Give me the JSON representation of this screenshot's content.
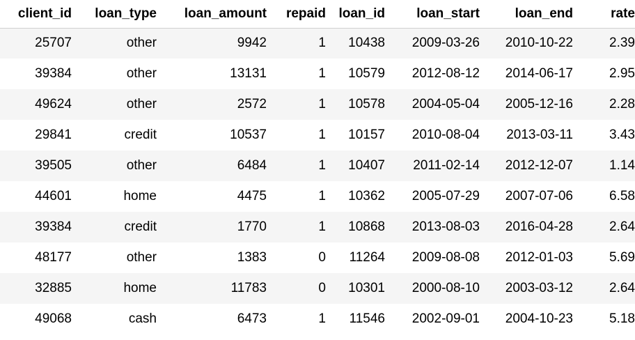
{
  "table": {
    "columns": [
      "client_id",
      "loan_type",
      "loan_amount",
      "repaid",
      "loan_id",
      "loan_start",
      "loan_end",
      "rate"
    ],
    "rows": [
      [
        "25707",
        "other",
        "9942",
        "1",
        "10438",
        "2009-03-26",
        "2010-10-22",
        "2.39"
      ],
      [
        "39384",
        "other",
        "13131",
        "1",
        "10579",
        "2012-08-12",
        "2014-06-17",
        "2.95"
      ],
      [
        "49624",
        "other",
        "2572",
        "1",
        "10578",
        "2004-05-04",
        "2005-12-16",
        "2.28"
      ],
      [
        "29841",
        "credit",
        "10537",
        "1",
        "10157",
        "2010-08-04",
        "2013-03-11",
        "3.43"
      ],
      [
        "39505",
        "other",
        "6484",
        "1",
        "10407",
        "2011-02-14",
        "2012-12-07",
        "1.14"
      ],
      [
        "44601",
        "home",
        "4475",
        "1",
        "10362",
        "2005-07-29",
        "2007-07-06",
        "6.58"
      ],
      [
        "39384",
        "credit",
        "1770",
        "1",
        "10868",
        "2013-08-03",
        "2016-04-28",
        "2.64"
      ],
      [
        "48177",
        "other",
        "1383",
        "0",
        "11264",
        "2009-08-08",
        "2012-01-03",
        "5.69"
      ],
      [
        "32885",
        "home",
        "11783",
        "0",
        "10301",
        "2000-08-10",
        "2003-03-12",
        "2.64"
      ],
      [
        "49068",
        "cash",
        "6473",
        "1",
        "11546",
        "2002-09-01",
        "2004-10-23",
        "5.18"
      ]
    ]
  }
}
